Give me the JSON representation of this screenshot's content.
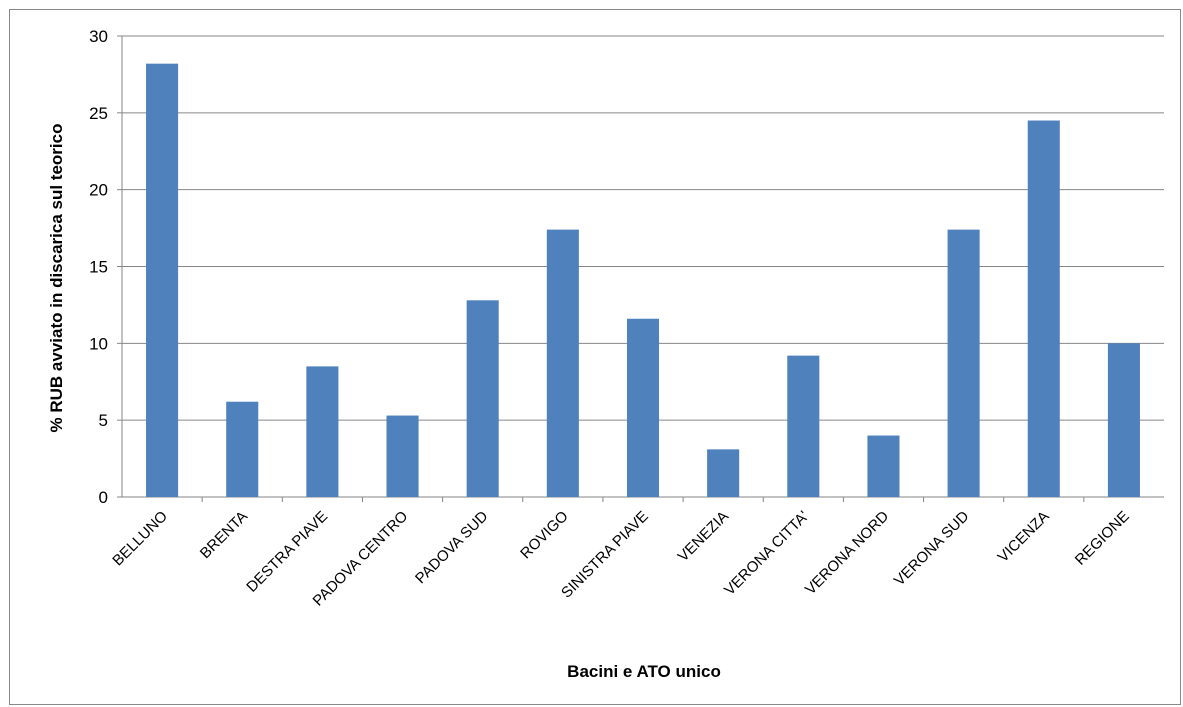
{
  "chart_data": {
    "type": "bar",
    "title": "",
    "xlabel": "Bacini e ATO unico",
    "ylabel": "% RUB avviato in discarica sul teorico",
    "ylim": [
      0,
      30
    ],
    "yticks": [
      0,
      5,
      10,
      15,
      20,
      25,
      30
    ],
    "grid": true,
    "bar_color": "#4f81bd",
    "categories": [
      "BELLUNO",
      "BRENTA",
      "DESTRA PIAVE",
      "PADOVA CENTRO",
      "PADOVA SUD",
      "ROVIGO",
      "SINISTRA PIAVE",
      "VENEZIA",
      "VERONA CITTA'",
      "VERONA NORD",
      "VERONA SUD",
      "VICENZA",
      "REGIONE"
    ],
    "values": [
      28.2,
      6.2,
      8.5,
      5.3,
      12.8,
      17.4,
      11.6,
      3.1,
      9.2,
      4.0,
      17.4,
      24.5,
      10.0
    ]
  }
}
